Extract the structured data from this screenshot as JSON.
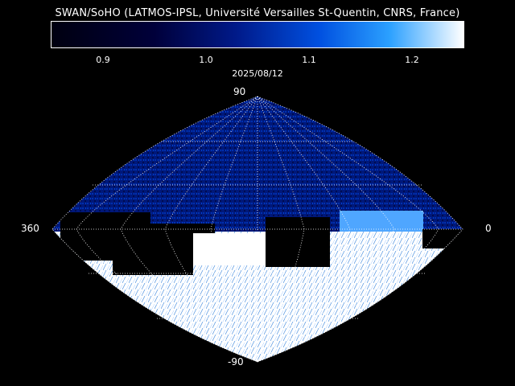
{
  "title": "SWAN/SoHO (LATMOS-IPSL, Université Versailles St-Quentin, CNRS, France)",
  "colorbar": {
    "ticks": [
      "0.9",
      "1.0",
      "1.1",
      "1.2"
    ]
  },
  "date": "2025/08/12",
  "axes": {
    "top_lat": "90",
    "bottom_lat": "-90",
    "left_lon": "360",
    "right_lon": "0"
  },
  "colors": {
    "background": "#000000",
    "low": "#00003a",
    "mid": "#0050e0",
    "high": "#ffffff"
  }
}
